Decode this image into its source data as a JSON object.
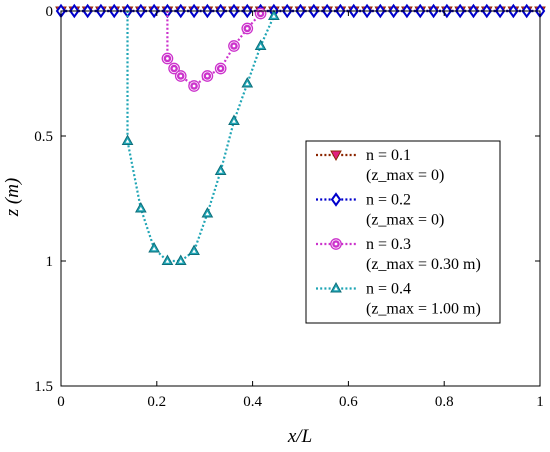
{
  "chart_data": {
    "type": "line",
    "xlabel": "x/L",
    "ylabel": "z (m)",
    "xlim": [
      0,
      1
    ],
    "ylim": [
      0,
      1.5
    ],
    "y_inverted": true,
    "xticks": [
      0,
      0.2,
      0.4,
      0.6,
      0.8,
      1
    ],
    "xtick_labels": [
      "0",
      "0.2",
      "0.4",
      "0.6",
      "0.8",
      "1"
    ],
    "yticks": [
      0,
      0.5,
      1,
      1.5
    ],
    "ytick_labels": [
      "0",
      "0.5",
      "1",
      "1.5"
    ],
    "legend_position": "right",
    "series": [
      {
        "label_main": "n = 0.1",
        "label_sub": "(z_max = 0)",
        "color": "#8B2500",
        "marker": "triangle-down",
        "marker_color": "#e0207f",
        "x": [
          0,
          0.0278,
          0.0556,
          0.0833,
          0.1111,
          0.1389,
          0.1667,
          0.1944,
          0.2222,
          0.25,
          0.2778,
          0.3056,
          0.3333,
          0.3611,
          0.3889,
          0.4167,
          0.4444,
          0.4722,
          0.5,
          0.5278,
          0.5556,
          0.5833,
          0.6111,
          0.6389,
          0.6667,
          0.6944,
          0.7222,
          0.75,
          0.7778,
          0.8056,
          0.8333,
          0.8611,
          0.8889,
          0.9167,
          0.9444,
          0.9722,
          1
        ],
        "y": [
          0,
          0,
          0,
          0,
          0,
          0,
          0,
          0,
          0,
          0,
          0,
          0,
          0,
          0,
          0,
          0,
          0,
          0,
          0,
          0,
          0,
          0,
          0,
          0,
          0,
          0,
          0,
          0,
          0,
          0,
          0,
          0,
          0,
          0,
          0,
          0,
          0
        ]
      },
      {
        "label_main": "n = 0.2",
        "label_sub": "(z_max = 0)",
        "color": "#0000cc",
        "marker": "diamond",
        "marker_color": "#0000cc",
        "x": [
          0,
          0.0278,
          0.0556,
          0.0833,
          0.1111,
          0.1389,
          0.1667,
          0.1944,
          0.2222,
          0.25,
          0.2778,
          0.3056,
          0.3333,
          0.3611,
          0.3889,
          0.4167,
          0.4444,
          0.4722,
          0.5,
          0.5278,
          0.5556,
          0.5833,
          0.6111,
          0.6389,
          0.6667,
          0.6944,
          0.7222,
          0.75,
          0.7778,
          0.8056,
          0.8333,
          0.8611,
          0.8889,
          0.9167,
          0.9444,
          0.9722,
          1
        ],
        "y": [
          0,
          0,
          0,
          0,
          0,
          0,
          0,
          0,
          0,
          0,
          0,
          0,
          0,
          0,
          0,
          0,
          0,
          0,
          0,
          0,
          0,
          0,
          0,
          0,
          0,
          0,
          0,
          0,
          0,
          0,
          0,
          0,
          0,
          0,
          0,
          0,
          0
        ]
      },
      {
        "label_main": "n = 0.3",
        "label_sub": "(z_max = 0.30 m)",
        "color": "#cc33cc",
        "marker": "circle",
        "marker_color": "#cc33cc",
        "x": [
          0.2222,
          0.2222,
          0.2361,
          0.25,
          0.2778,
          0.3056,
          0.3333,
          0.3611,
          0.3889,
          0.4167,
          0.4167
        ],
        "y": [
          0,
          0.19,
          0.23,
          0.26,
          0.3,
          0.26,
          0.23,
          0.14,
          0.07,
          0.01,
          0
        ]
      },
      {
        "label_main": "n = 0.4",
        "label_sub": "(z_max = 1.00 m)",
        "color": "#1fa5b5",
        "marker": "triangle-up",
        "marker_color": "#1fa5b5",
        "x": [
          0.1389,
          0.1389,
          0.1667,
          0.1944,
          0.2222,
          0.25,
          0.2778,
          0.3056,
          0.3333,
          0.3611,
          0.3889,
          0.4167,
          0.4444,
          0.4444
        ],
        "y": [
          0,
          0.52,
          0.79,
          0.95,
          1,
          1,
          0.96,
          0.81,
          0.64,
          0.44,
          0.29,
          0.14,
          0.02,
          0
        ]
      }
    ]
  }
}
